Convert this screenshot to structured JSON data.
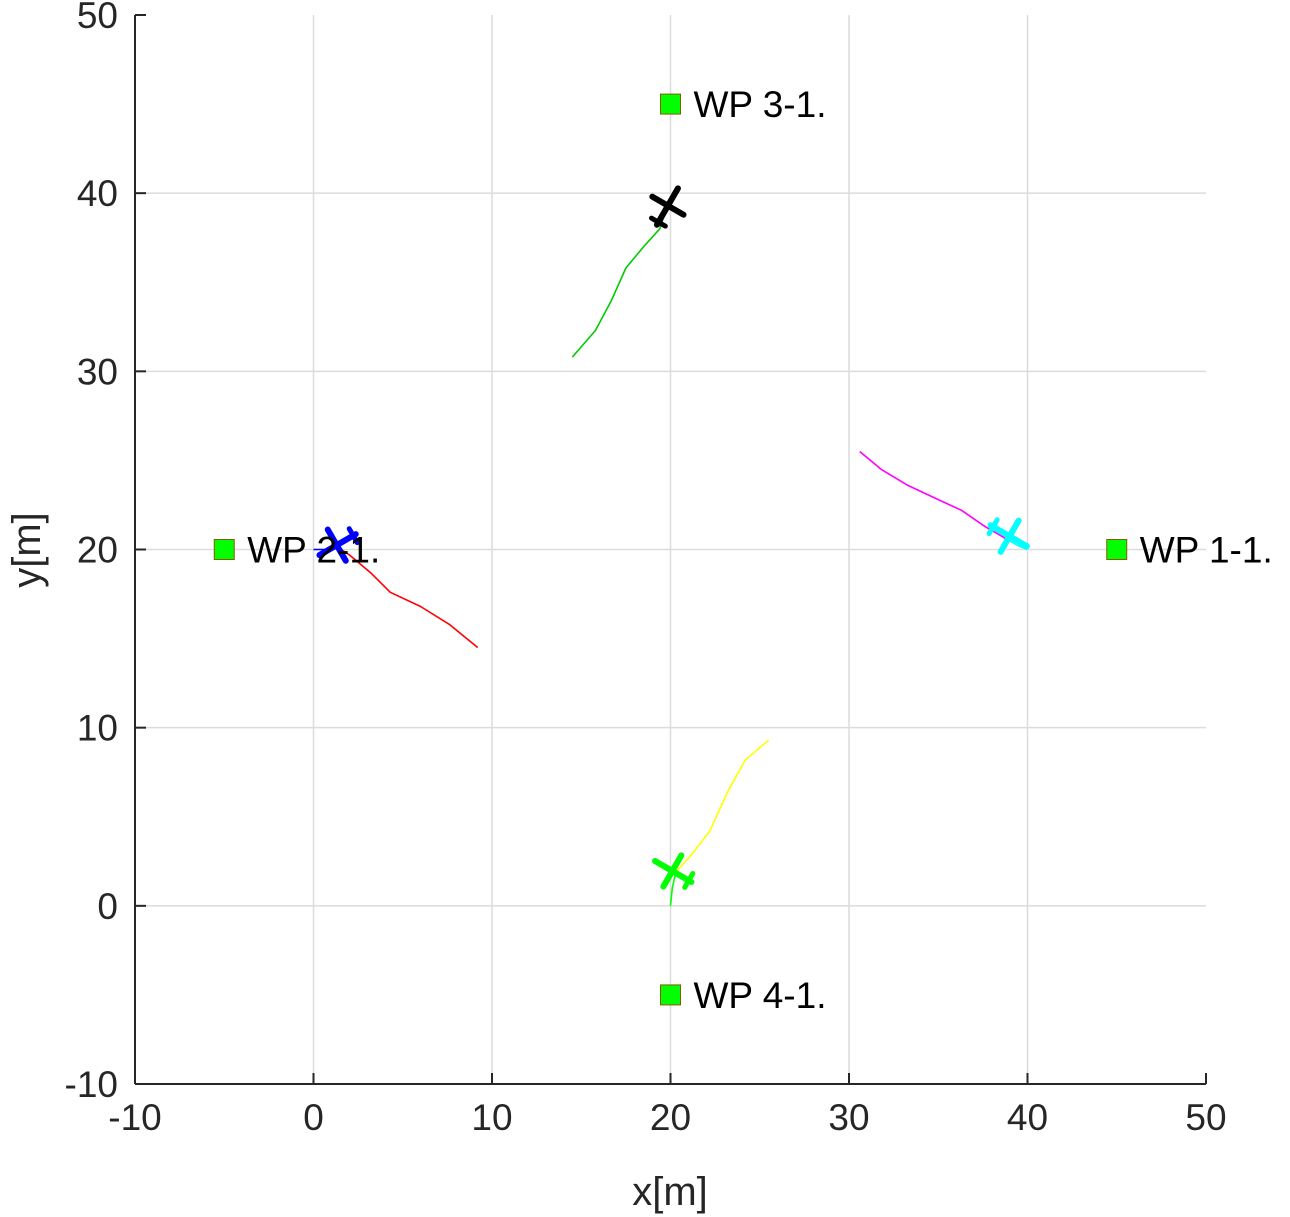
{
  "chart_data": {
    "type": "scatter",
    "title": "",
    "xlabel": "x[m]",
    "ylabel": "y[m]",
    "xlim": [
      -10,
      50
    ],
    "ylim": [
      -10,
      50
    ],
    "xticks": [
      -10,
      0,
      10,
      20,
      30,
      40,
      50
    ],
    "yticks": [
      -10,
      0,
      10,
      20,
      30,
      40,
      50
    ],
    "xtick_labels": [
      "-10",
      "0",
      "10",
      "20",
      "30",
      "40",
      "50"
    ],
    "ytick_labels": [
      "-10",
      "0",
      "10",
      "20",
      "30",
      "40",
      "50"
    ],
    "grid": true,
    "colors": {
      "axis": "#262626",
      "grid": "#dcdcdc",
      "waypoint_fill": "#00ff00"
    },
    "waypoints": [
      {
        "label": "WP 1-1.",
        "x": 45,
        "y": 20
      },
      {
        "label": "WP 2-1.",
        "x": -5,
        "y": 20
      },
      {
        "label": "WP 3-1.",
        "x": 20,
        "y": 45
      },
      {
        "label": "WP 4-1.",
        "x": 20,
        "y": -5
      }
    ],
    "trajectories": [
      {
        "color": "#ff0000",
        "points": [
          [
            9.2,
            14.5
          ],
          [
            7.6,
            15.8
          ],
          [
            6.0,
            16.8
          ],
          [
            4.3,
            17.6
          ],
          [
            3.2,
            18.7
          ],
          [
            2.0,
            19.7
          ],
          [
            1.4,
            20.1
          ]
        ]
      },
      {
        "color": "#ff00ff",
        "points": [
          [
            30.6,
            25.5
          ],
          [
            31.8,
            24.5
          ],
          [
            33.3,
            23.6
          ],
          [
            35.0,
            22.8
          ],
          [
            36.3,
            22.2
          ],
          [
            37.6,
            21.3
          ],
          [
            38.8,
            20.6
          ]
        ]
      },
      {
        "color": "#00cc00",
        "points": [
          [
            14.5,
            30.8
          ],
          [
            15.8,
            32.3
          ],
          [
            16.7,
            34.0
          ],
          [
            17.5,
            35.8
          ],
          [
            18.5,
            37.0
          ],
          [
            19.4,
            38.0
          ],
          [
            19.8,
            39.2
          ]
        ]
      },
      {
        "color": "#ffff00",
        "points": [
          [
            25.5,
            9.3
          ],
          [
            24.2,
            8.2
          ],
          [
            23.2,
            6.4
          ],
          [
            22.2,
            4.2
          ],
          [
            21.2,
            2.9
          ],
          [
            20.3,
            1.9
          ]
        ]
      },
      {
        "color": "#0000ff",
        "points": [
          [
            0.0,
            20.0
          ],
          [
            0.8,
            20.0
          ],
          [
            1.4,
            20.1
          ]
        ]
      },
      {
        "color": "#00ffff",
        "points": [
          [
            38.8,
            20.6
          ],
          [
            39.5,
            20.2
          ],
          [
            40.0,
            20.0
          ]
        ]
      },
      {
        "color": "#00ff00",
        "points": [
          [
            20.3,
            1.9
          ],
          [
            20.1,
            1.0
          ],
          [
            20.0,
            0.0
          ]
        ]
      }
    ],
    "aircraft": [
      {
        "x": 1.4,
        "y": 20.3,
        "heading_deg": 150,
        "color": "#0000ff"
      },
      {
        "x": 38.9,
        "y": 20.8,
        "heading_deg": 30,
        "color": "#00ffff"
      },
      {
        "x": 19.8,
        "y": 39.2,
        "heading_deg": -60,
        "color": "#000000"
      },
      {
        "x": 20.2,
        "y": 1.9,
        "heading_deg": 210,
        "color": "#00ff00"
      }
    ]
  }
}
